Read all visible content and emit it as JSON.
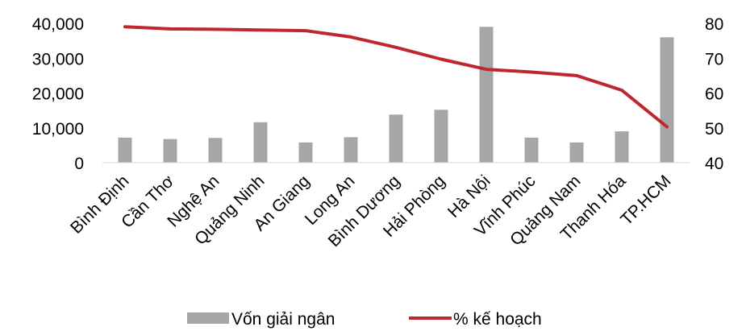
{
  "chart_data": {
    "type": "bar+line",
    "categories": [
      "Bình Định",
      "Cần Thơ",
      "Nghệ An",
      "Quảng Ninh",
      "An Giang",
      "Long An",
      "Bình Dương",
      "Hải Phòng",
      "Hà Nội",
      "Vĩnh Phúc",
      "Quảng Nam",
      "Thanh Hóa",
      "TP.HCM"
    ],
    "series": [
      {
        "name": "Vốn giải ngân",
        "type": "bar",
        "axis": "left",
        "color": "#a6a6a6",
        "values": [
          7200,
          6800,
          7100,
          11600,
          5800,
          7300,
          13800,
          15200,
          39000,
          7200,
          5800,
          9000,
          36000
        ]
      },
      {
        "name": "% kế hoạch",
        "type": "line",
        "axis": "right",
        "color": "#c0262d",
        "values": [
          79,
          78.4,
          78.3,
          78.1,
          77.9,
          76.1,
          73.1,
          69.7,
          66.8,
          66.0,
          65.0,
          60.8,
          50.3
        ]
      }
    ],
    "y_left": {
      "ylim": [
        0,
        40000
      ],
      "ticks": [
        0,
        10000,
        20000,
        30000,
        40000
      ],
      "tick_labels": [
        "0",
        "10,000",
        "20,000",
        "30,000",
        "40,000"
      ]
    },
    "y_right": {
      "ylim": [
        40,
        80
      ],
      "ticks": [
        40,
        50,
        60,
        70,
        80
      ],
      "tick_labels": [
        "40",
        "50",
        "60",
        "70",
        "80"
      ]
    },
    "grid": false,
    "legend_position": "bottom"
  }
}
